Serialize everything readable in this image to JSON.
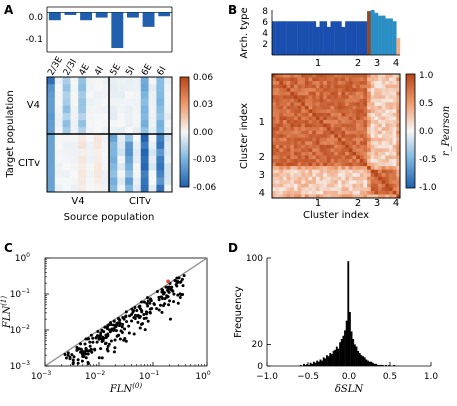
{
  "panels": {
    "A": {
      "label": "A",
      "bar": {
        "type": "bar",
        "categories": [
          "2/3E",
          "2/3I",
          "4E",
          "4I",
          "5E",
          "5I",
          "6E",
          "6I"
        ],
        "values": [
          -0.03,
          -0.01,
          -0.03,
          -0.02,
          -0.135,
          -0.02,
          -0.055,
          -0.015
        ],
        "yticks": [
          "0.0",
          "-0.1"
        ],
        "ylim": [
          -0.15,
          0.02
        ]
      },
      "heatmap": {
        "type": "heatmap",
        "xlabel": "Source population",
        "ylabel": "Target population",
        "xgroups": [
          "V4",
          "CITv"
        ],
        "ygroups": [
          "V4",
          "CITv"
        ],
        "colorbar_ticks": [
          "0.06",
          "0.03",
          "0.00",
          "-0.03",
          "-0.06"
        ],
        "vmin": -0.06,
        "vmax": 0.06
      }
    },
    "B": {
      "label": "B",
      "bar": {
        "type": "bar",
        "ylabel": "Arch. type",
        "yticks": [
          "8",
          "6",
          "4",
          "2"
        ],
        "ylim": [
          0,
          8
        ],
        "cluster_labels": [
          "1",
          "2",
          "3",
          "4"
        ],
        "clusters": [
          {
            "name": "1",
            "values": [
              6,
              6,
              6,
              6,
              6,
              6,
              6,
              6,
              6,
              6,
              6,
              6,
              5,
              6,
              6,
              5,
              6,
              6,
              6,
              5,
              6,
              6,
              6,
              6,
              6,
              6
            ],
            "color": "#1a4fb0"
          },
          {
            "name": "2",
            "values": [
              7.8
            ],
            "color": "#8b4a2b"
          },
          {
            "name": "3",
            "values": [
              8,
              7.5,
              7,
              7,
              6.5,
              6.5,
              6
            ],
            "color": "#2b8fc6"
          },
          {
            "name": "4",
            "values": [
              3
            ],
            "color": "#f0b089"
          }
        ]
      },
      "heatmap": {
        "type": "heatmap",
        "xlabel": "Cluster index",
        "ylabel": "Cluster index",
        "xgroups": [
          "1",
          "2",
          "3",
          "4"
        ],
        "ygroups": [
          "1",
          "2",
          "3",
          "4"
        ],
        "colorbar_label": "r_Pearson",
        "colorbar_ticks": [
          "1.0",
          "0.5",
          "0.0",
          "-0.5",
          "-1.0"
        ],
        "vmin": -1.0,
        "vmax": 1.0
      }
    },
    "C": {
      "label": "C",
      "type": "scatter",
      "xlabel": "FLN(0)",
      "ylabel": "FLN(1)",
      "xlabel_main": "FLN",
      "xlabel_sup": "(0)",
      "ylabel_main": "FLN",
      "ylabel_sup": "(1)",
      "xtick_base": "10",
      "xtick_exps": [
        "−3",
        "−2",
        "−1",
        "0"
      ],
      "ytick_base": "10",
      "ytick_exps": [
        "−3",
        "−2",
        "−1",
        "0"
      ],
      "xlim": [
        0.001,
        1
      ],
      "ylim": [
        0.001,
        1
      ],
      "log": true
    },
    "D": {
      "label": "D",
      "type": "bar",
      "xlabel": "δSLN",
      "ylabel": "Frequency",
      "xticks": [
        "−1.0",
        "−0.5",
        "0.0",
        "0.5",
        "1.0"
      ],
      "yticks": [
        "100",
        "20",
        "0"
      ],
      "xlim": [
        -1,
        1
      ],
      "ylim": [
        0,
        100
      ],
      "bin_width": 0.02,
      "bins_start": -0.6,
      "counts": [
        1,
        0,
        2,
        1,
        2,
        1,
        3,
        2,
        4,
        3,
        5,
        4,
        6,
        5,
        8,
        7,
        10,
        9,
        12,
        11,
        14,
        15,
        18,
        16,
        22,
        25,
        28,
        33,
        42,
        97,
        50,
        32,
        25,
        20,
        18,
        14,
        12,
        10,
        9,
        8,
        6,
        5,
        4,
        4,
        3,
        2,
        2,
        1,
        1,
        1,
        1,
        0,
        1,
        0,
        1,
        0,
        0,
        1,
        0,
        0
      ]
    }
  }
}
